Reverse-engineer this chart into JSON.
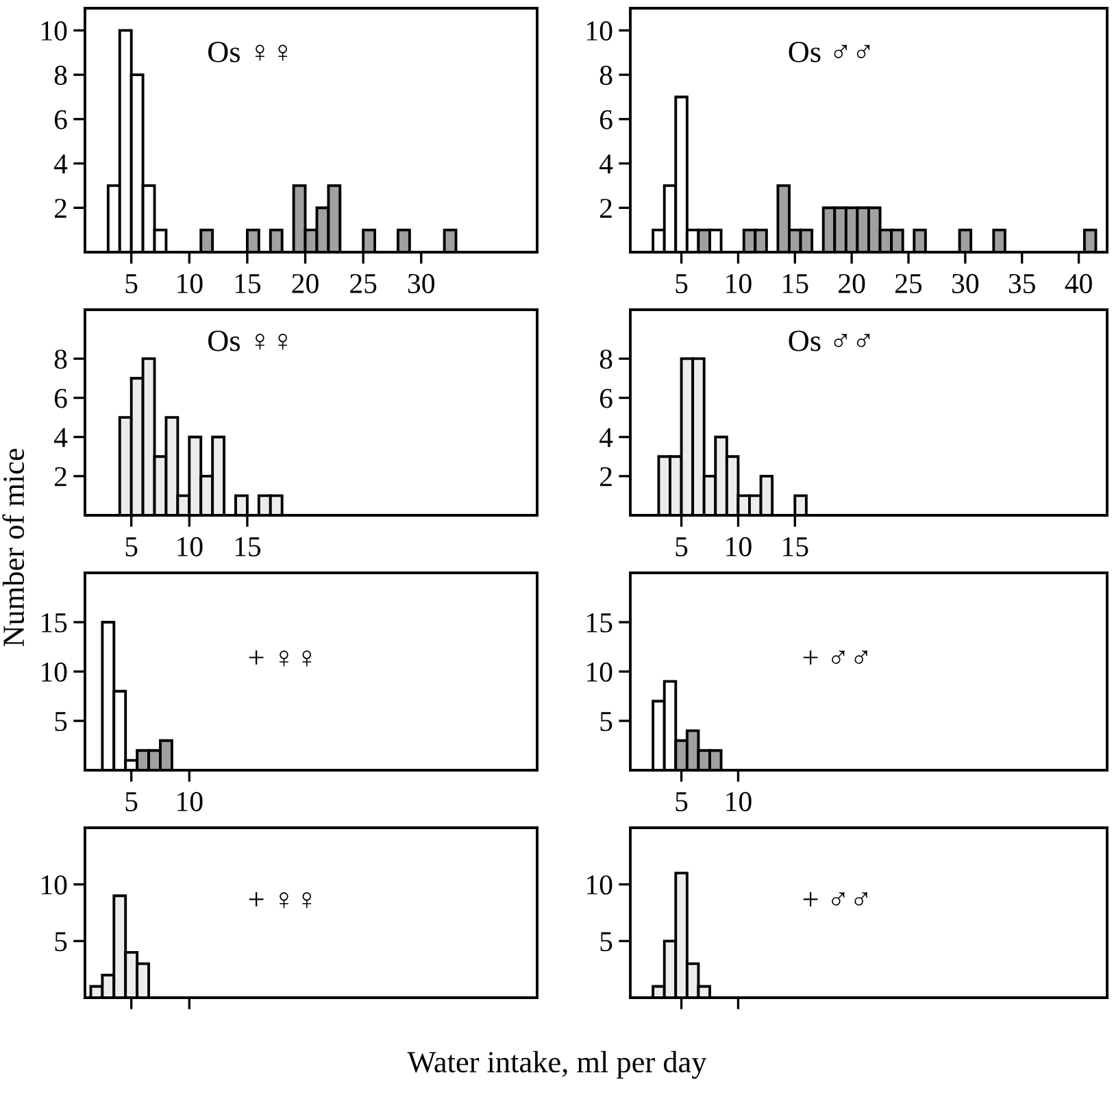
{
  "chart_data": [
    {
      "type": "histogram",
      "annotations": [
        "Os ♀♀"
      ],
      "xlim": [
        1,
        40
      ],
      "xticks": [
        5,
        10,
        15,
        20,
        25,
        30
      ],
      "ylim": [
        0,
        11
      ],
      "yticks": [
        2,
        4,
        6,
        8,
        10
      ],
      "bins": [
        3,
        4,
        5,
        6,
        7,
        8,
        9,
        10,
        11,
        12,
        13,
        14,
        15,
        16,
        17,
        18,
        19,
        20,
        21,
        22,
        23,
        24,
        25,
        26,
        27,
        28,
        29,
        30,
        31,
        32,
        33
      ],
      "series": [
        {
          "color": "#ffffff",
          "values": [
            3,
            10,
            8,
            3,
            1,
            null,
            null,
            null,
            null,
            null,
            null,
            null,
            null,
            null,
            null,
            null,
            null,
            null,
            null,
            null,
            null,
            null,
            null,
            null,
            null,
            null,
            null,
            null,
            null,
            null
          ]
        },
        {
          "color": "#a0a0a0",
          "values": [
            null,
            null,
            null,
            null,
            null,
            null,
            null,
            null,
            1,
            null,
            null,
            null,
            1,
            null,
            1,
            null,
            3,
            1,
            2,
            3,
            null,
            null,
            1,
            null,
            null,
            1,
            null,
            null,
            null,
            1
          ]
        }
      ]
    },
    {
      "type": "histogram",
      "annotations": [
        "Os ♂♂"
      ],
      "xlim": [
        0.5,
        42.5
      ],
      "xticks": [
        5,
        10,
        15,
        20,
        25,
        30,
        35,
        40
      ],
      "ylim": [
        0,
        11
      ],
      "yticks": [
        2,
        4,
        6,
        8,
        10
      ],
      "bins": [
        2.5,
        3.5,
        4.5,
        5.5,
        6.5,
        7.5,
        8.5,
        9.5,
        10.5,
        11.5,
        12.5,
        13.5,
        14.5,
        15.5,
        16.5,
        17.5,
        18.5,
        19.5,
        20.5,
        21.5,
        22.5,
        23.5,
        24.5,
        25.5,
        26.5,
        27.5,
        28.5,
        29.5,
        30.5,
        31.5,
        32.5,
        33.5,
        34.5,
        35.5,
        36.5,
        37.5,
        38.5,
        39.5,
        40.5,
        41.5
      ],
      "series": [
        {
          "color": "#ffffff",
          "values": [
            1,
            3,
            7,
            1,
            null,
            1,
            null,
            null,
            null,
            null,
            null,
            null,
            null,
            null,
            null,
            null,
            null,
            null,
            null,
            null,
            null,
            null,
            null,
            null,
            null,
            null,
            null,
            null,
            null,
            null,
            null,
            null,
            null,
            null,
            null,
            null,
            null,
            null,
            null
          ]
        },
        {
          "color": "#a0a0a0",
          "values": [
            null,
            null,
            null,
            null,
            1,
            null,
            null,
            null,
            1,
            1,
            null,
            3,
            1,
            1,
            null,
            2,
            2,
            2,
            2,
            2,
            1,
            1,
            null,
            1,
            null,
            null,
            null,
            1,
            null,
            null,
            1,
            null,
            null,
            null,
            null,
            null,
            null,
            null,
            1
          ]
        }
      ]
    },
    {
      "type": "histogram",
      "annotations": [
        "Os ♀♀"
      ],
      "ylabel": "Number of mice",
      "xlim": [
        1,
        40
      ],
      "xticks": [
        5,
        10,
        15
      ],
      "ylim": [
        0,
        10.5
      ],
      "yticks": [
        2,
        4,
        6,
        8
      ],
      "bins": [
        4,
        5,
        6,
        7,
        8,
        9,
        10,
        11,
        12,
        13,
        14,
        15,
        16,
        17,
        18
      ],
      "series": [
        {
          "color": "#ececec",
          "values": [
            5,
            7,
            8,
            3,
            5,
            1,
            4,
            2,
            4,
            null,
            1,
            null,
            1,
            1
          ]
        }
      ]
    },
    {
      "type": "histogram",
      "annotations": [
        "Os ♂♂"
      ],
      "xlim": [
        0.5,
        42.5
      ],
      "xticks": [
        5,
        10,
        15
      ],
      "ylim": [
        0,
        10.5
      ],
      "yticks": [
        2,
        4,
        6,
        8
      ],
      "bins": [
        3,
        4,
        5,
        6,
        7,
        8,
        9,
        10,
        11,
        12,
        13,
        14,
        15,
        16
      ],
      "series": [
        {
          "color": "#ececec",
          "values": [
            3,
            3,
            8,
            8,
            2,
            4,
            3,
            1,
            1,
            2,
            null,
            null,
            1
          ]
        }
      ]
    },
    {
      "type": "histogram",
      "annotations": [
        "+ ♀♀"
      ],
      "xlim": [
        1,
        40
      ],
      "xticks": [
        5,
        10
      ],
      "ylim": [
        0,
        20
      ],
      "yticks": [
        5,
        10,
        15
      ],
      "bins": [
        2.5,
        3.5,
        4.5,
        5.5,
        6.5,
        7.5,
        8.5
      ],
      "series": [
        {
          "color": "#ffffff",
          "values": [
            15,
            8,
            1,
            null,
            null,
            null
          ]
        },
        {
          "color": "#a0a0a0",
          "values": [
            null,
            null,
            null,
            2,
            2,
            3
          ]
        }
      ]
    },
    {
      "type": "histogram",
      "annotations": [
        "+ ♂♂"
      ],
      "xlim": [
        0.5,
        42.5
      ],
      "xticks": [
        5,
        10
      ],
      "ylim": [
        0,
        20
      ],
      "yticks": [
        5,
        10,
        15
      ],
      "bins": [
        2.5,
        3.5,
        4.5,
        5.5,
        6.5,
        7.5,
        8.5
      ],
      "series": [
        {
          "color": "#ffffff",
          "values": [
            7,
            9,
            null,
            null,
            null,
            null
          ]
        },
        {
          "color": "#a0a0a0",
          "values": [
            null,
            null,
            3,
            4,
            2,
            2
          ]
        }
      ]
    },
    {
      "type": "histogram",
      "annotations": [
        "+ ♀♀"
      ],
      "xlabel": "Water intake, ml per day",
      "xlim": [
        1,
        40
      ],
      "xticks": [
        5,
        10
      ],
      "ylim": [
        0,
        15
      ],
      "yticks": [
        5,
        10
      ],
      "tick_labels": "y",
      "bins": [
        1.5,
        2.5,
        3.5,
        4.5,
        5.5,
        6.5
      ],
      "series": [
        {
          "color": "#ececec",
          "values": [
            1,
            2,
            9,
            4,
            3
          ]
        }
      ]
    },
    {
      "type": "histogram",
      "annotations": [
        "+ ♂♂"
      ],
      "xlim": [
        0.5,
        42.5
      ],
      "xticks": [
        5,
        10
      ],
      "ylim": [
        0,
        15
      ],
      "yticks": [
        5,
        10
      ],
      "tick_labels": "y",
      "bins": [
        2.5,
        3.5,
        4.5,
        5.5,
        6.5,
        7.5
      ],
      "series": [
        {
          "color": "#ececec",
          "values": [
            1,
            5,
            11,
            3,
            1
          ]
        }
      ]
    }
  ]
}
